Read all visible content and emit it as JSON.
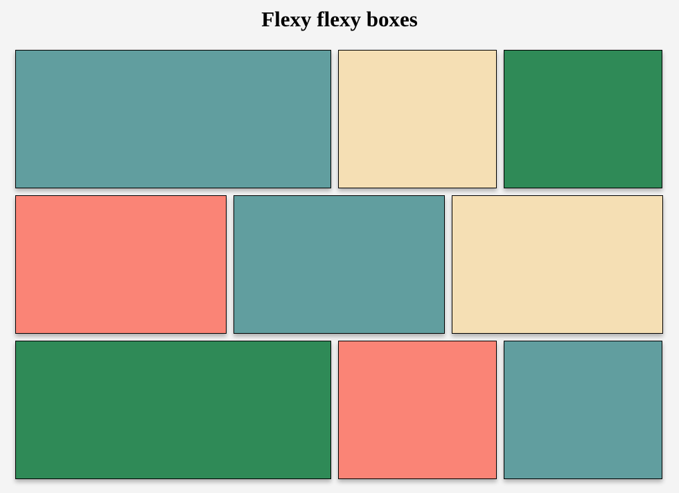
{
  "page": {
    "title": "Flexy flexy boxes"
  },
  "colors": {
    "teal": "#619e9f",
    "wheat": "#f5dfb4",
    "green": "#2f8a57",
    "salmon": "#fa8476"
  },
  "rows": [
    {
      "boxes": [
        {
          "color": "#619e9f"
        },
        {
          "color": "#f5dfb4"
        },
        {
          "color": "#2f8a57"
        }
      ]
    },
    {
      "boxes": [
        {
          "color": "#fa8476"
        },
        {
          "color": "#619e9f"
        },
        {
          "color": "#f5dfb4"
        }
      ]
    },
    {
      "boxes": [
        {
          "color": "#2f8a57"
        },
        {
          "color": "#fa8476"
        },
        {
          "color": "#619e9f"
        }
      ]
    }
  ]
}
